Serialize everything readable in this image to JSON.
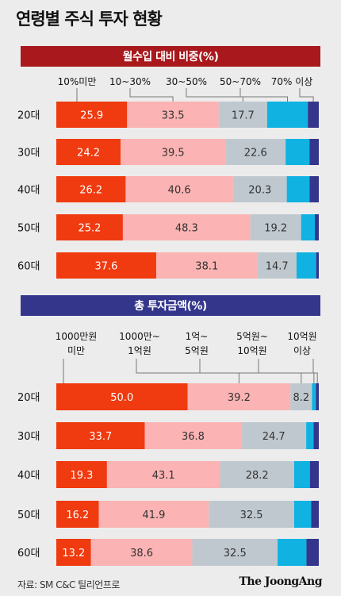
{
  "title": "연령별 주식 투자 현황",
  "colors": [
    "#f03a0f",
    "#fbb3b3",
    "#c0c8cf",
    "#10b2e2",
    "#34368c"
  ],
  "footer": {
    "source": "자료: SM C&C 틸리언프로",
    "brand": "The JoongAng"
  },
  "chart_data": [
    {
      "type": "bar",
      "orientation": "horizontal",
      "stacked": "100%",
      "title": "월수입 대비 비중(%)",
      "categories": [
        "20대",
        "30대",
        "40대",
        "50대",
        "60대"
      ],
      "series": [
        {
          "name": "10%미만",
          "values": [
            25.9,
            24.2,
            26.2,
            25.2,
            37.6
          ],
          "labels": [
            "25.9",
            "24.2",
            "26.2",
            "25.2",
            "37.6"
          ]
        },
        {
          "name": "10~30%",
          "values": [
            33.5,
            39.5,
            40.6,
            48.3,
            38.1
          ],
          "labels": [
            "33.5",
            "39.5",
            "40.6",
            "48.3",
            "38.1"
          ]
        },
        {
          "name": "30~50%",
          "values": [
            17.7,
            22.6,
            20.3,
            19.2,
            14.7
          ],
          "labels": [
            "17.7",
            "22.6",
            "20.3",
            "19.2",
            "14.7"
          ]
        },
        {
          "name": "50~70%",
          "values": [
            14.9,
            9.0,
            8.6,
            5.2,
            7.4
          ],
          "labels": [
            "",
            "",
            "",
            "",
            ""
          ]
        },
        {
          "name": "70% 이상",
          "values": [
            4.0,
            3.5,
            3.5,
            1.5,
            1.0
          ],
          "labels": [
            "",
            "",
            "",
            "",
            ""
          ]
        }
      ]
    },
    {
      "type": "bar",
      "orientation": "horizontal",
      "stacked": "100%",
      "title": "총 투자금액(%)",
      "categories": [
        "20대",
        "30대",
        "40대",
        "50대",
        "60대"
      ],
      "series": [
        {
          "name": "1000만원 미만",
          "values": [
            50.0,
            33.7,
            19.3,
            16.2,
            13.2
          ],
          "labels": [
            "50.0",
            "33.7",
            "19.3",
            "16.2",
            "13.2"
          ]
        },
        {
          "name": "1000만~ 1억원",
          "values": [
            39.2,
            36.8,
            43.1,
            41.9,
            38.6
          ],
          "labels": [
            "39.2",
            "36.8",
            "43.1",
            "41.9",
            "38.6"
          ]
        },
        {
          "name": "1억~ 5억원",
          "values": [
            8.2,
            24.7,
            28.2,
            32.5,
            32.5
          ],
          "labels": [
            "8.2",
            "24.7",
            "28.2",
            "32.5",
            "32.5"
          ]
        },
        {
          "name": "5억원~ 10억원",
          "values": [
            1.5,
            2.8,
            6.0,
            6.5,
            11.0
          ],
          "labels": [
            "",
            "",
            "",
            "",
            ""
          ]
        },
        {
          "name": "10억원 이상",
          "values": [
            1.1,
            2.0,
            3.4,
            2.9,
            4.7
          ],
          "labels": [
            "",
            "",
            "",
            "",
            ""
          ]
        }
      ]
    }
  ]
}
